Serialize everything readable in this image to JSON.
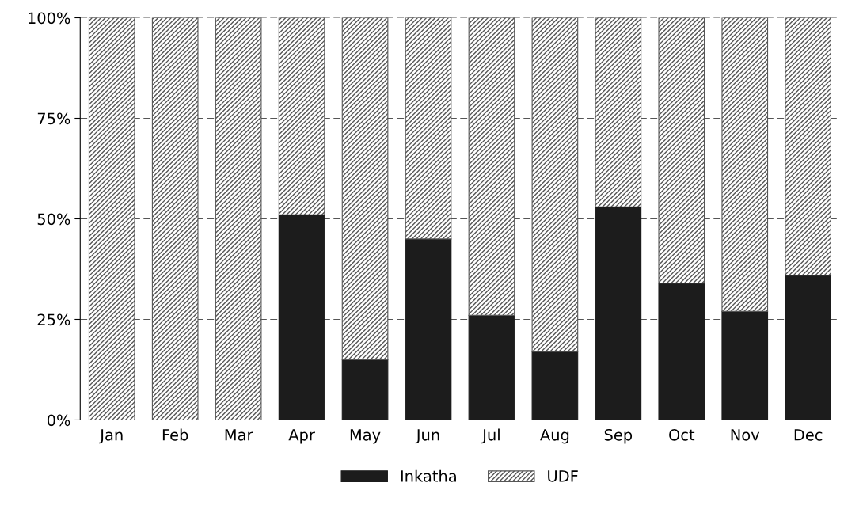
{
  "chart_data": {
    "type": "bar",
    "stacked": true,
    "categories": [
      "Jan",
      "Feb",
      "Mar",
      "Apr",
      "May",
      "Jun",
      "Jul",
      "Aug",
      "Sep",
      "Oct",
      "Nov",
      "Dec"
    ],
    "series": [
      {
        "name": "Inkatha",
        "color": "#1c1c1c",
        "values": [
          0,
          0,
          0,
          51,
          15,
          45,
          26,
          17,
          53,
          34,
          27,
          36
        ]
      },
      {
        "name": "UDF",
        "color": "#555555",
        "values": [
          100,
          100,
          100,
          49,
          85,
          55,
          74,
          83,
          47,
          66,
          73,
          64
        ]
      }
    ],
    "ylim": [
      0,
      100
    ],
    "yticks": [
      {
        "value": 0,
        "label": "0%"
      },
      {
        "value": 25,
        "label": "25%"
      },
      {
        "value": 50,
        "label": "50%"
      },
      {
        "value": 75,
        "label": "75%"
      },
      {
        "value": 100,
        "label": "100%"
      }
    ],
    "grid": "y",
    "legend": "bottom"
  }
}
